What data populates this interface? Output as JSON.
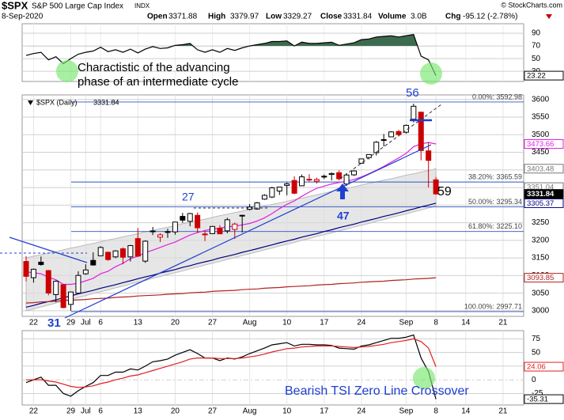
{
  "header": {
    "symbol": "$SPX",
    "name": "S&P 500 Large Cap Index",
    "exchange": "INDX",
    "date": "8-Sep-2020",
    "open_label": "Open",
    "high_label": "High",
    "low_label": "Low",
    "close_label": "Close",
    "volume_label": "Volume",
    "volume": "3.0B",
    "chg_label": "Chg",
    "chg": "-95.12 (-2.78%)",
    "copyright": "© StockCharts.com"
  },
  "chart_data": {
    "type": "candlestick",
    "legend_label": "$SPX (Daily)",
    "categories": [
      null,
      "22",
      null,
      null,
      null,
      null,
      "29",
      null,
      "Jul",
      null,
      "6",
      null,
      null,
      null,
      null,
      "13",
      null,
      null,
      null,
      null,
      "20",
      null,
      null,
      null,
      null,
      "27",
      null,
      null,
      null,
      null,
      "Aug",
      null,
      null,
      null,
      null,
      "10",
      null,
      null,
      null,
      null,
      "17",
      null,
      null,
      null,
      null,
      "24",
      null,
      null,
      null,
      null,
      null,
      "Sep",
      null,
      null,
      null,
      "8",
      null,
      null,
      null,
      "14",
      null,
      null,
      null,
      null,
      "21",
      null,
      null,
      null
    ],
    "open": [
      3140,
      3094,
      3138,
      3114,
      3046,
      3074,
      3018,
      3050,
      3105,
      3143,
      3156,
      3166,
      3153,
      3176,
      3153,
      3205,
      3141,
      3225,
      3209,
      3224,
      3224,
      3268,
      3254,
      3271,
      3218,
      3219,
      3234,
      3227,
      3231,
      3270,
      3288,
      3289,
      3317,
      3323,
      3340,
      3356,
      3370,
      3355,
      3372,
      3368,
      3380,
      3387,
      3392,
      3360,
      3386,
      3419,
      3435,
      3449,
      3486,
      3494,
      3509,
      3507,
      3544,
      3564,
      3454,
      3371.88,
      null,
      null,
      null,
      null,
      null,
      null,
      null,
      null,
      null,
      null,
      null,
      null
    ],
    "high": [
      3155,
      3120,
      3154,
      3116,
      3086,
      3074,
      3054,
      3112,
      3132,
      3166,
      3183,
      3168,
      3172,
      3180,
      3187,
      3235,
      3200,
      3238,
      3220,
      3233,
      3252,
      3278,
      3278,
      3279,
      3227,
      3241,
      3243,
      3264,
      3250,
      3272,
      3303,
      3309,
      3331,
      3352,
      3352,
      3364,
      3382,
      3387,
      3388,
      3378,
      3387,
      3393,
      3399,
      3391,
      3399,
      3432,
      3444,
      3482,
      3502,
      3510,
      3514,
      3529,
      3588,
      3565,
      3479,
      3379.97,
      null,
      null,
      null,
      null,
      null,
      null,
      null,
      null,
      null,
      null,
      null,
      null
    ],
    "low": [
      3083,
      3080,
      3128,
      3044,
      3024,
      3007,
      3000,
      3048,
      3102,
      3128,
      3156,
      3142,
      3149,
      3132,
      3140,
      3153,
      3136,
      3215,
      3195,
      3207,
      3216,
      3250,
      3240,
      3221,
      3198,
      3219,
      3218,
      3220,
      3204,
      3222,
      3285,
      3287,
      3315,
      3320,
      3329,
      3328,
      3331,
      3354,
      3367,
      3361,
      3374,
      3370,
      3370,
      3354,
      3383,
      3418,
      3430,
      3441,
      3467,
      3493,
      3495,
      3503,
      3535,
      3427,
      3350,
      3329.27,
      null,
      null,
      null,
      null,
      null,
      null,
      null,
      null,
      null,
      null,
      null,
      null
    ],
    "close": [
      3097.74,
      3117.86,
      3131.29,
      3050.33,
      3083.76,
      3009.05,
      3053.24,
      3100.29,
      3115.86,
      3130.01,
      3179.72,
      3145.32,
      3169.94,
      3152.05,
      3185.04,
      3155.22,
      3197.52,
      3226.56,
      3215.57,
      3224.73,
      3251.84,
      3257.3,
      3276.02,
      3235.66,
      3215.63,
      3239.41,
      3218.44,
      3258.44,
      3246.22,
      3271.12,
      3294.61,
      3306.51,
      3327.77,
      3349.16,
      3351.28,
      3360.47,
      3333.69,
      3380.35,
      3373.43,
      3372.85,
      3381.99,
      3389.78,
      3374.85,
      3385.51,
      3397.16,
      3431.28,
      3443.62,
      3478.73,
      3484.55,
      3508.01,
      3500.31,
      3526.65,
      3580.84,
      3455.06,
      3426.96,
      3331.84,
      null,
      null,
      null,
      null,
      null,
      null,
      null,
      null,
      null,
      null,
      null,
      null
    ],
    "ylim": [
      2984,
      3613
    ],
    "yticks": [
      3000,
      3050,
      3100,
      3150,
      3200,
      3250,
      3300,
      3350,
      3400,
      3450,
      3500,
      3550,
      3600
    ],
    "grid": true,
    "up_color": "#000000",
    "down_color": "#cc0000",
    "overlays": [
      {
        "color": "#e020e0",
        "values": [
          3110,
          3108,
          3105,
          3095,
          3088,
          3075,
          3075,
          3078,
          3085,
          3092,
          3105,
          3112,
          3125,
          3135,
          3148,
          3155,
          3165,
          3172,
          3180,
          3188,
          3195,
          3205,
          3215,
          3222,
          3228,
          3232,
          3235,
          3238,
          3240,
          3244,
          3248,
          3255,
          3264,
          3276,
          3290,
          3302,
          3312,
          3325,
          3337,
          3348,
          3354,
          3360,
          3364,
          3368,
          3373,
          3380,
          3389,
          3399,
          3410,
          3422,
          3434,
          3447,
          3466,
          3474,
          3478,
          3473.66,
          null,
          null,
          null,
          null,
          null,
          null,
          null,
          null,
          null,
          null,
          null,
          null
        ]
      },
      {
        "color": "#000080",
        "values": [
          3010,
          3015,
          3021,
          3026,
          3031,
          3037,
          3042,
          3048,
          3053,
          3058,
          3064,
          3069,
          3074,
          3080,
          3085,
          3091,
          3096,
          3101,
          3107,
          3112,
          3117,
          3123,
          3128,
          3134,
          3139,
          3144,
          3150,
          3155,
          3160,
          3166,
          3171,
          3176,
          3182,
          3187,
          3193,
          3198,
          3203,
          3209,
          3214,
          3219,
          3225,
          3230,
          3236,
          3241,
          3246,
          3252,
          3257,
          3262,
          3268,
          3273,
          3278,
          3284,
          3289,
          3295,
          3300,
          3305.37,
          null,
          null,
          null,
          null,
          null,
          null,
          null,
          null,
          null,
          null,
          null,
          null
        ]
      },
      {
        "color": "#b22222",
        "values": [
          3022,
          3023,
          3025,
          3026,
          3027,
          3029,
          3030,
          3031,
          3032,
          3034,
          3035,
          3036,
          3038,
          3039,
          3040,
          3042,
          3043,
          3044,
          3045,
          3047,
          3048,
          3049,
          3051,
          3052,
          3053,
          3055,
          3056,
          3057,
          3058,
          3060,
          3061,
          3062,
          3064,
          3065,
          3066,
          3068,
          3069,
          3070,
          3071,
          3073,
          3074,
          3075,
          3077,
          3078,
          3079,
          3081,
          3082,
          3083,
          3084,
          3086,
          3087,
          3088,
          3090,
          3091,
          3092,
          3093.85,
          null,
          null,
          null,
          null,
          null,
          null,
          null,
          null,
          null,
          null,
          null,
          null
        ]
      }
    ],
    "band": {
      "color": "#dcdcdc",
      "upper": [
        3150,
        3155,
        3159,
        3164,
        3168,
        3173,
        3178,
        3182,
        3187,
        3191,
        3196,
        3201,
        3205,
        3210,
        3214,
        3219,
        3224,
        3228,
        3233,
        3237,
        3242,
        3247,
        3251,
        3256,
        3260,
        3265,
        3270,
        3274,
        3279,
        3283,
        3288,
        3293,
        3297,
        3302,
        3306,
        3311,
        3316,
        3320,
        3325,
        3329,
        3334,
        3339,
        3343,
        3348,
        3352,
        3357,
        3362,
        3366,
        3371,
        3375,
        3380,
        3385,
        3389,
        3394,
        3398,
        3403.48,
        null,
        null,
        null,
        null,
        null,
        null,
        null,
        null,
        null,
        null,
        null,
        null
      ],
      "lower": [
        3000,
        3005,
        3011,
        3016,
        3022,
        3027,
        3032,
        3038,
        3043,
        3049,
        3054,
        3059,
        3065,
        3070,
        3076,
        3081,
        3086,
        3092,
        3097,
        3103,
        3108,
        3113,
        3119,
        3124,
        3130,
        3135,
        3140,
        3146,
        3151,
        3157,
        3162,
        3167,
        3173,
        3178,
        3184,
        3189,
        3194,
        3200,
        3205,
        3211,
        3216,
        3221,
        3227,
        3232,
        3238,
        3243,
        3248,
        3254,
        3259,
        3265,
        3270,
        3275,
        3281,
        3286,
        3292,
        3297,
        null,
        null,
        null,
        null,
        null,
        null,
        null,
        null,
        null,
        null,
        null,
        null
      ]
    },
    "fib_levels": [
      {
        "value": 3592.98,
        "label": "0.00%: 3592.98"
      },
      {
        "value": 3365.59,
        "label": "38.20%: 3365.59"
      },
      {
        "value": 3295.34,
        "label": "50.00%: 3295.34"
      },
      {
        "value": 3225.1,
        "label": "61.80%: 3225.10"
      },
      {
        "value": 2997.71,
        "label": "100.00%: 2997.71"
      }
    ],
    "price_tags": [
      {
        "value": 3473.66,
        "color": "#e020e0"
      },
      {
        "value": 3403.48,
        "color": "#777777"
      },
      {
        "value": 3351.04,
        "color": "#777777"
      },
      {
        "value": 3305.37,
        "color": "#000080"
      },
      {
        "value": 3093.85,
        "color": "#b22222"
      }
    ],
    "annotations": {
      "cycle_note": [
        "Charactistic of the advancing",
        "phase of an intermediate cycle"
      ],
      "wave_labels": [
        "56",
        "27",
        "47",
        "59",
        "31"
      ],
      "tsi_note": "Bearish TSI Zero Line Crossover"
    },
    "upper_panel": {
      "type": "line",
      "ylim": [
        14,
        105
      ],
      "yticks": [
        90,
        70,
        50,
        30
      ],
      "fill_above": 70,
      "fill_color": "#3d6b4f",
      "series": [
        {
          "color": "#000000",
          "values": [
            55,
            58,
            60,
            48,
            53,
            42,
            50,
            57,
            60,
            62,
            68,
            61,
            64,
            60,
            65,
            59,
            65,
            69,
            66,
            67,
            71,
            72,
            74,
            64,
            60,
            64,
            60,
            66,
            63,
            67,
            70,
            72,
            74,
            77,
            77,
            78,
            70,
            76,
            74,
            74,
            75,
            76,
            71,
            73,
            75,
            80,
            81,
            84,
            85,
            86,
            84,
            86,
            88,
            54,
            48,
            23.22,
            null,
            null,
            null,
            null,
            null,
            null,
            null,
            null,
            null,
            null,
            null,
            null
          ]
        }
      ]
    },
    "lower_panel": {
      "type": "line",
      "ylim": [
        -46,
        90
      ],
      "yticks": [
        75,
        50,
        25,
        0,
        -25
      ],
      "series": [
        {
          "color": "#000000",
          "values": [
            -5,
            0,
            5,
            -10,
            -10,
            -25,
            -30,
            -20,
            -12,
            -5,
            8,
            8,
            14,
            14,
            20,
            18,
            25,
            33,
            35,
            38,
            45,
            50,
            55,
            48,
            40,
            40,
            35,
            40,
            38,
            42,
            48,
            53,
            58,
            64,
            66,
            68,
            62,
            65,
            65,
            64,
            64,
            63,
            58,
            57,
            56,
            62,
            64,
            68,
            72,
            76,
            76,
            78,
            82,
            40,
            15,
            -35.31,
            null,
            null,
            null,
            null,
            null,
            null,
            null,
            null,
            null,
            null,
            null,
            null
          ]
        },
        {
          "color": "#e02020",
          "values": [
            0,
            0,
            0,
            -2,
            -4,
            -8,
            -12,
            -14,
            -13,
            -11,
            -7,
            -4,
            0,
            3,
            7,
            9,
            13,
            17,
            21,
            25,
            29,
            33,
            38,
            40,
            40,
            40,
            39,
            39,
            39,
            40,
            42,
            44,
            47,
            51,
            54,
            57,
            58,
            60,
            61,
            62,
            62,
            62,
            61,
            60,
            59,
            60,
            61,
            63,
            65,
            68,
            70,
            72,
            75,
            70,
            58,
            24.06,
            null,
            null,
            null,
            null,
            null,
            null,
            null,
            null,
            null,
            null,
            null,
            null
          ]
        }
      ]
    }
  }
}
